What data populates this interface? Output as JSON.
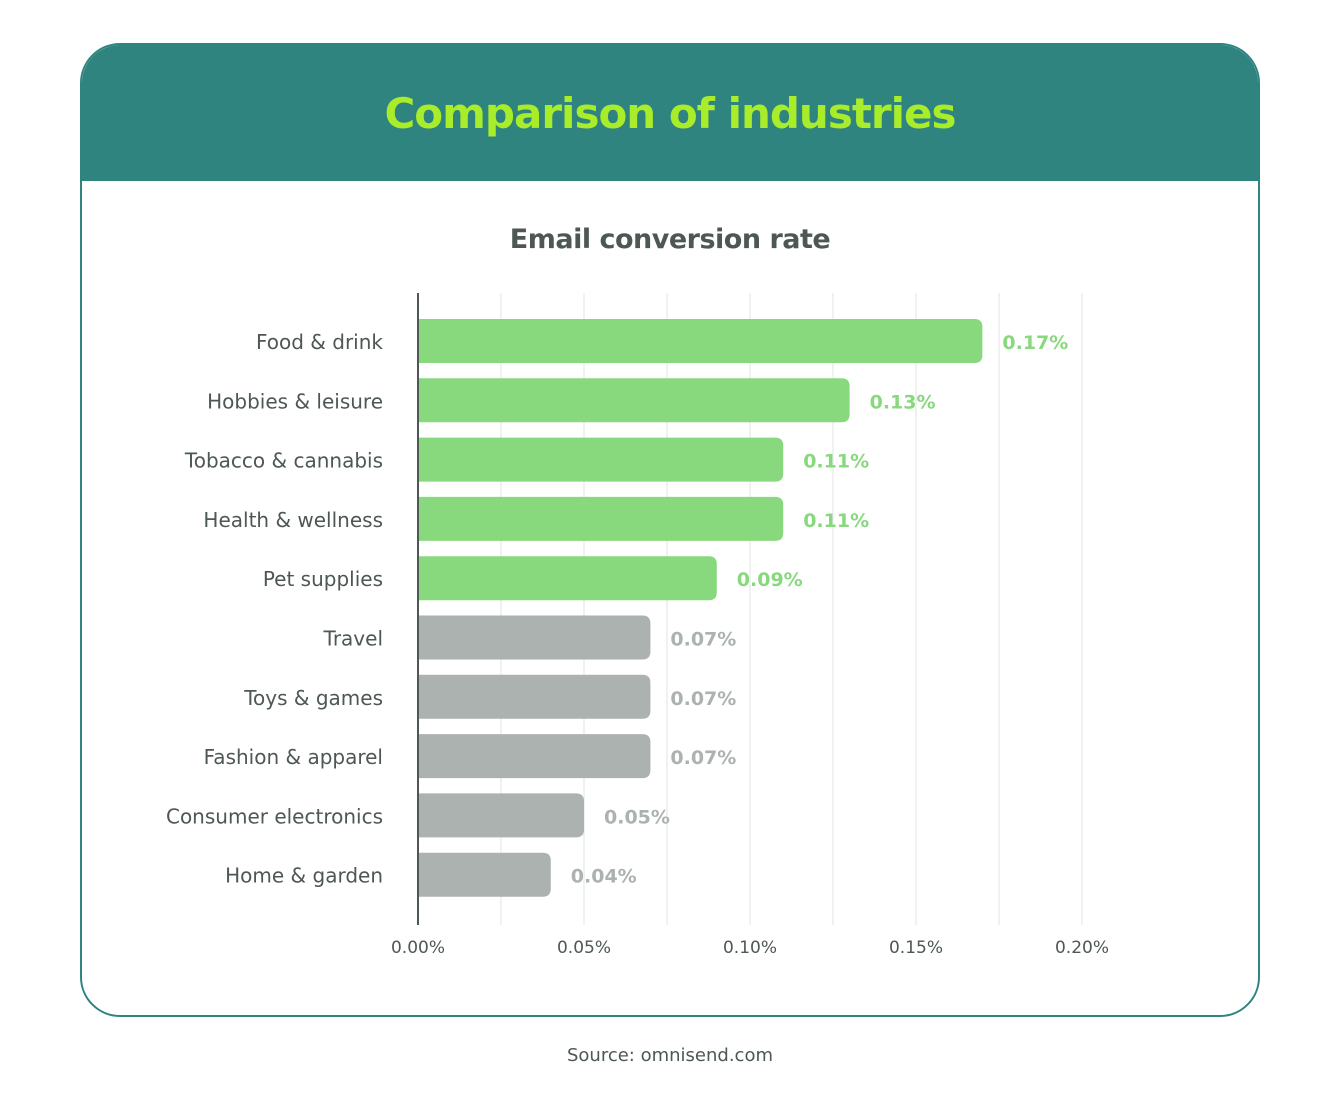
{
  "header": {
    "title": "Comparison of industries"
  },
  "source": "Source: omnisend.com",
  "colors": {
    "header": "#2f8480",
    "title": "#a9ec2a",
    "highlight": "#88d87e",
    "muted": "#abb2b0",
    "text": "#4d5755"
  },
  "chart_data": {
    "type": "bar",
    "orientation": "horizontal",
    "title": "Email conversion rate",
    "categories": [
      "Food & drink",
      "Hobbies & leisure",
      "Tobacco & cannabis",
      "Health & wellness",
      "Pet supplies",
      "Travel",
      "Toys & games",
      "Fashion & apparel",
      "Consumer electronics",
      "Home & garden"
    ],
    "values": [
      0.17,
      0.13,
      0.11,
      0.11,
      0.09,
      0.07,
      0.07,
      0.07,
      0.05,
      0.04
    ],
    "value_labels": [
      "0.17%",
      "0.13%",
      "0.11%",
      "0.11%",
      "0.09%",
      "0.07%",
      "0.07%",
      "0.07%",
      "0.05%",
      "0.04%"
    ],
    "highlighted": [
      true,
      true,
      true,
      true,
      true,
      false,
      false,
      false,
      false,
      false
    ],
    "xlim": [
      0,
      0.2
    ],
    "xticks": [
      0,
      0.05,
      0.1,
      0.15,
      0.2
    ],
    "xtick_labels": [
      "0.00%",
      "0.05%",
      "0.10%",
      "0.15%",
      "0.20%"
    ],
    "grid": "vertical every 0.025",
    "xlabel": "",
    "ylabel": ""
  }
}
